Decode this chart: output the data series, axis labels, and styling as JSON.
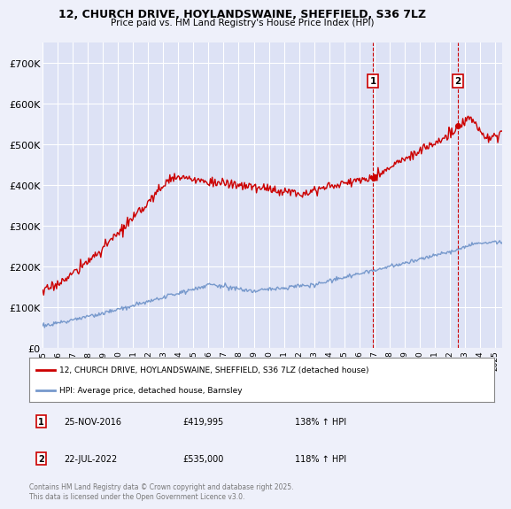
{
  "title_line1": "12, CHURCH DRIVE, HOYLANDSWAINE, SHEFFIELD, S36 7LZ",
  "title_line2": "Price paid vs. HM Land Registry's House Price Index (HPI)",
  "background_color": "#eef0fa",
  "plot_bg_color": "#dde2f5",
  "grid_color": "#ffffff",
  "red_line_color": "#cc0000",
  "blue_line_color": "#7799cc",
  "legend_line1": "12, CHURCH DRIVE, HOYLANDSWAINE, SHEFFIELD, S36 7LZ (detached house)",
  "legend_line2": "HPI: Average price, detached house, Barnsley",
  "footer": "Contains HM Land Registry data © Crown copyright and database right 2025.\nThis data is licensed under the Open Government Licence v3.0.",
  "ylim": [
    0,
    750000
  ],
  "yticks": [
    0,
    100000,
    200000,
    300000,
    400000,
    500000,
    600000,
    700000
  ],
  "ytick_labels": [
    "£0",
    "£100K",
    "£200K",
    "£300K",
    "£400K",
    "£500K",
    "£600K",
    "£700K"
  ],
  "xlim": [
    1995,
    2025.5
  ],
  "marker1_x": 2016.917,
  "marker2_x": 2022.542,
  "marker1_y": 419995,
  "marker2_y": 535000
}
